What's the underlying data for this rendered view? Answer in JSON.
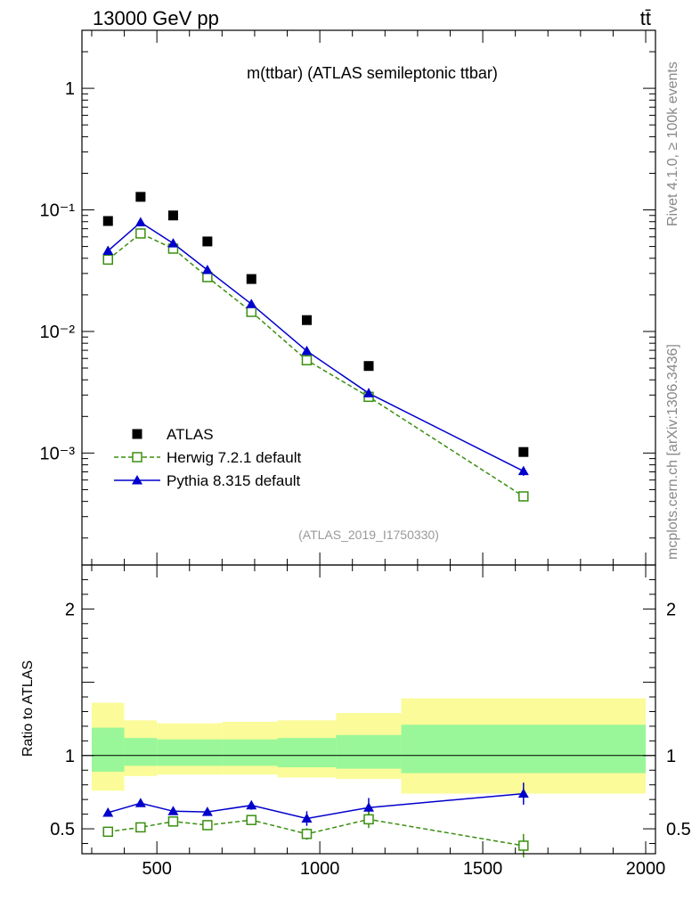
{
  "header": {
    "energy_label": "13000 GeV pp",
    "process_label": "tt̄"
  },
  "side_labels": {
    "rivet": "Rivet 4.1.0, ≥ 100k events",
    "mcplots": "mcplots.cern.ch [arXiv:1306.3436]"
  },
  "colors": {
    "atlas": "#000000",
    "herwig": "#3a8f10",
    "pythia": "#0000cc",
    "band_inner": "#99f799",
    "band_outer": "#fbfb99"
  },
  "chart_data": [
    {
      "type": "scatter",
      "title": "m(ttbar) (ATLAS semileptonic ttbar)",
      "watermark": "(ATLAS_2019_I1750330)",
      "yscale": "log",
      "ylim": [
        0.00012,
        3.0
      ],
      "xlim": [
        270,
        2030
      ],
      "ytick_labels": [
        "1",
        "10⁻¹",
        "10⁻²",
        "10⁻³"
      ],
      "ytick_values": [
        1,
        0.1,
        0.01,
        0.001
      ],
      "legend_position": "bottom-left",
      "series": [
        {
          "name": "ATLAS",
          "marker": "square-filled",
          "x": [
            350,
            450,
            550,
            655,
            790,
            960,
            1150,
            1625
          ],
          "y": [
            0.081,
            0.128,
            0.09,
            0.055,
            0.027,
            0.0124,
            0.0052,
            0.00102
          ]
        },
        {
          "name": "Herwig 7.2.1 default",
          "marker": "square-open",
          "line": "dashed",
          "x": [
            350,
            450,
            550,
            655,
            790,
            960,
            1150,
            1625
          ],
          "y": [
            0.039,
            0.064,
            0.048,
            0.028,
            0.0145,
            0.0058,
            0.0029,
            0.00044
          ],
          "err": [
            0.002,
            0.003,
            0.002,
            0.0013,
            0.0007,
            0.0004,
            0.0002,
            4e-05
          ]
        },
        {
          "name": "Pythia 8.315 default",
          "marker": "triangle-filled",
          "line": "solid",
          "x": [
            350,
            450,
            550,
            655,
            790,
            960,
            1150,
            1625
          ],
          "y": [
            0.046,
            0.079,
            0.053,
            0.032,
            0.0168,
            0.0069,
            0.0031,
            0.00071
          ],
          "err": [
            0.002,
            0.003,
            0.002,
            0.0013,
            0.0008,
            0.0005,
            0.0003,
            6e-05
          ]
        }
      ]
    },
    {
      "type": "scatter",
      "ylabel": "Ratio to ATLAS",
      "xlim": [
        270,
        2030
      ],
      "ylim": [
        0.33,
        2.3
      ],
      "xtick_values": [
        500,
        1000,
        1500,
        2000
      ],
      "xtick_labels": [
        "500",
        "1000",
        "1500",
        "2000"
      ],
      "ytick_values": [
        0.5,
        1,
        2
      ],
      "ytick_labels": [
        "0.5",
        "1",
        "2"
      ],
      "bands": {
        "bin_edges": [
          300,
          400,
          500,
          700,
          870,
          1050,
          1250,
          2000
        ],
        "inner_lo": [
          0.89,
          0.93,
          0.93,
          0.93,
          0.92,
          0.91,
          0.88
        ],
        "inner_hi": [
          1.19,
          1.12,
          1.11,
          1.11,
          1.12,
          1.14,
          1.21
        ],
        "outer_lo": [
          0.76,
          0.86,
          0.87,
          0.87,
          0.85,
          0.84,
          0.74
        ],
        "outer_hi": [
          1.36,
          1.24,
          1.22,
          1.23,
          1.24,
          1.29,
          1.39
        ]
      },
      "series": [
        {
          "name": "Herwig 7.2.1 default",
          "x": [
            350,
            450,
            550,
            655,
            790,
            960,
            1150,
            1625
          ],
          "y": [
            0.48,
            0.51,
            0.55,
            0.525,
            0.56,
            0.465,
            0.565,
            0.385
          ],
          "err": [
            0.02,
            0.02,
            0.02,
            0.025,
            0.03,
            0.04,
            0.06,
            0.08
          ]
        },
        {
          "name": "Pythia 8.315 default",
          "x": [
            350,
            450,
            550,
            655,
            790,
            960,
            1150,
            1625
          ],
          "y": [
            0.61,
            0.675,
            0.62,
            0.615,
            0.66,
            0.57,
            0.645,
            0.74
          ],
          "err": [
            0.02,
            0.02,
            0.02,
            0.025,
            0.03,
            0.05,
            0.065,
            0.075
          ]
        }
      ]
    }
  ]
}
